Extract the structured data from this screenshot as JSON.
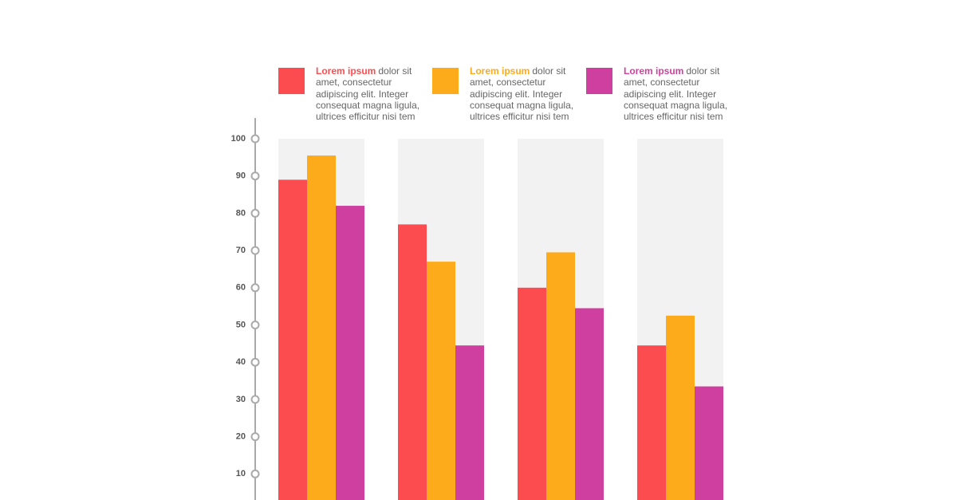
{
  "chart_data": {
    "type": "bar",
    "categories": [
      null,
      null,
      null,
      null
    ],
    "series": [
      {
        "name": "Lorem ipsum",
        "description": "dolor sit amet, consectetur adipiscing elit. Integer consequat magna ligula, ultrices efficitur nisi tem",
        "color": "#fd4c4f",
        "values": [
          89,
          77,
          60,
          44.5
        ]
      },
      {
        "name": "Lorem ipsum",
        "description": "dolor sit amet, consectetur adipiscing elit. Integer consequat magna ligula, ultrices efficitur nisi tem",
        "color": "#fdaa1b",
        "values": [
          95.5,
          67,
          69.5,
          52.5
        ]
      },
      {
        "name": "Lorem ipsum",
        "description": "dolor sit amet, consectetur adipiscing elit. Integer consequat magna ligula, ultrices efficitur nisi tem",
        "color": "#cf3f9f",
        "values": [
          82,
          44.5,
          54.5,
          33.5
        ]
      }
    ],
    "ylim": [
      0,
      100
    ],
    "yticks": [
      10,
      20,
      30,
      40,
      50,
      60,
      70,
      80,
      90,
      100
    ],
    "legend": "top"
  }
}
